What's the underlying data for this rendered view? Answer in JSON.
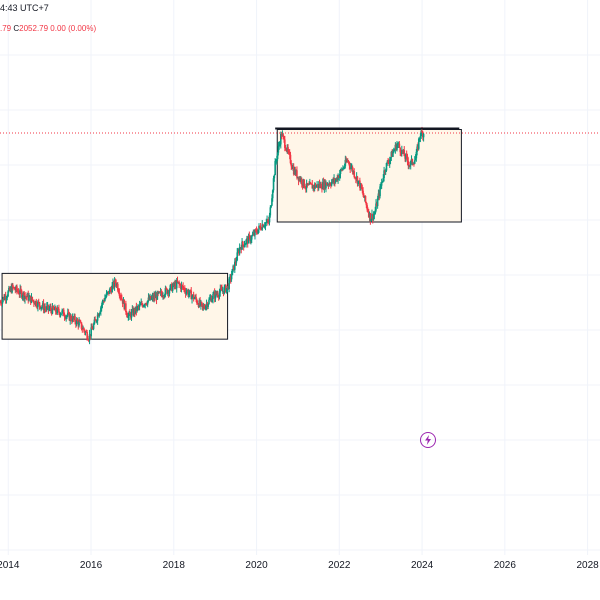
{
  "header": {
    "time_text": "4:43 UTC+7",
    "o_fragment": ".79",
    "close_label": "C",
    "close_value": "2052.79",
    "change_text": "0.00 (0.00%)"
  },
  "colors": {
    "up": "#089981",
    "down": "#f23645",
    "box_fill": "#fff6e8",
    "price_line": "#f23645",
    "grid": "#f0f3fa",
    "resistance": "#131722",
    "icon": "#9c27b0"
  },
  "icons": {
    "bolt": "lightning-bolt-icon"
  },
  "chart_data": {
    "type": "line",
    "title": "",
    "xlabel": "",
    "ylabel": "",
    "x_tick_labels": [
      "2014",
      "2016",
      "2018",
      "2020",
      "2022",
      "2024",
      "2026",
      "2028"
    ],
    "xlim": [
      2013.8,
      2028.3
    ],
    "ylim": [
      0,
      2700
    ],
    "last_price": 2052.79,
    "series": [
      {
        "values_x": [
          2013.8,
          2014.1,
          2014.5,
          2014.9,
          2015.3,
          2015.7,
          2015.95,
          2016.3,
          2016.6,
          2016.9,
          2017.3,
          2017.7,
          2018.1,
          2018.5,
          2018.7,
          2018.95,
          2019.3,
          2019.6,
          2019.9,
          2020.15,
          2020.3,
          2020.45,
          2020.6,
          2020.9,
          2021.2,
          2021.6,
          2021.9,
          2022.2,
          2022.5,
          2022.75,
          2022.85,
          2023.1,
          2023.4,
          2023.7,
          2023.85,
          2023.95,
          2024.05
        ],
        "values_y": [
          1230,
          1300,
          1250,
          1200,
          1180,
          1130,
          1060,
          1240,
          1330,
          1160,
          1230,
          1270,
          1320,
          1250,
          1200,
          1260,
          1300,
          1500,
          1550,
          1610,
          1620,
          1900,
          2050,
          1870,
          1790,
          1800,
          1820,
          1920,
          1800,
          1640,
          1660,
          1880,
          2000,
          1900,
          1930,
          2050,
          2053
        ]
      }
    ],
    "boxes": [
      {
        "x0": 2013.85,
        "x1": 2019.3,
        "y0": 1050,
        "y1": 1370
      },
      {
        "x0": 2020.5,
        "x1": 2024.95,
        "y0": 1620,
        "y1": 2070
      }
    ],
    "resistance_line": {
      "x0": 2020.45,
      "x1": 2024.9,
      "y": 2075
    },
    "grid": true
  }
}
